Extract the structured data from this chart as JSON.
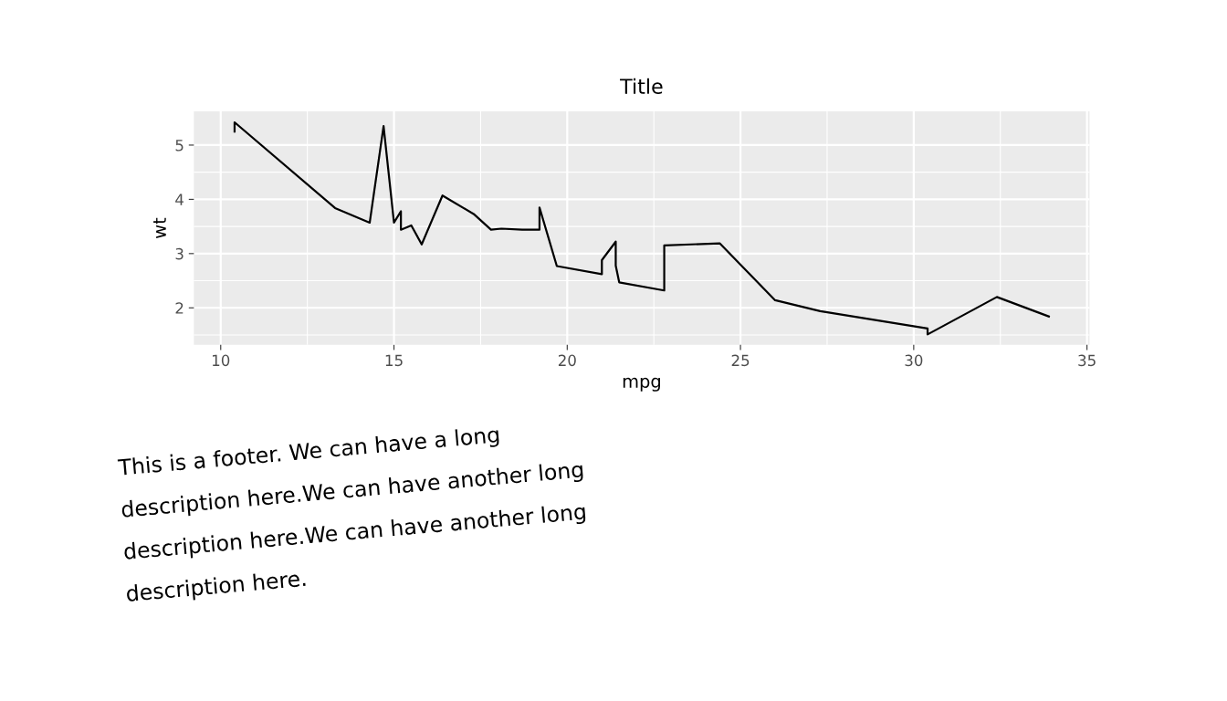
{
  "chart_data": {
    "type": "line",
    "title": "Title",
    "xlabel": "mpg",
    "ylabel": "wt",
    "x": [
      10.4,
      10.4,
      13.3,
      14.3,
      14.7,
      15.0,
      15.2,
      15.2,
      15.5,
      15.8,
      16.4,
      17.3,
      17.8,
      18.1,
      18.7,
      19.2,
      19.2,
      19.7,
      21.0,
      21.0,
      21.4,
      21.4,
      21.5,
      22.8,
      22.8,
      24.4,
      26.0,
      27.3,
      30.4,
      30.4,
      32.4,
      33.9
    ],
    "series": [
      {
        "color": "#000000",
        "values": [
          5.25,
          5.42,
          3.84,
          3.57,
          5.35,
          3.57,
          3.78,
          3.44,
          3.52,
          3.17,
          4.07,
          3.73,
          3.44,
          3.46,
          3.44,
          3.44,
          3.85,
          2.77,
          2.62,
          2.88,
          3.22,
          2.78,
          2.47,
          2.32,
          3.15,
          3.19,
          2.14,
          1.94,
          1.62,
          1.51,
          2.2,
          1.84
        ]
      }
    ],
    "xlim": [
      9.225,
      35.075
    ],
    "xticks": [
      10,
      15,
      20,
      25,
      30,
      35
    ],
    "ylim": [
      1.317,
      5.62
    ],
    "yticks": [
      2,
      3,
      4,
      5
    ],
    "grid": true,
    "legend": false,
    "marker": "none",
    "line_style": "solid",
    "annotations": [
      "This is a footer. We can have a long",
      "description here.We can have another long",
      "description here.We can have another long",
      "description here."
    ]
  }
}
